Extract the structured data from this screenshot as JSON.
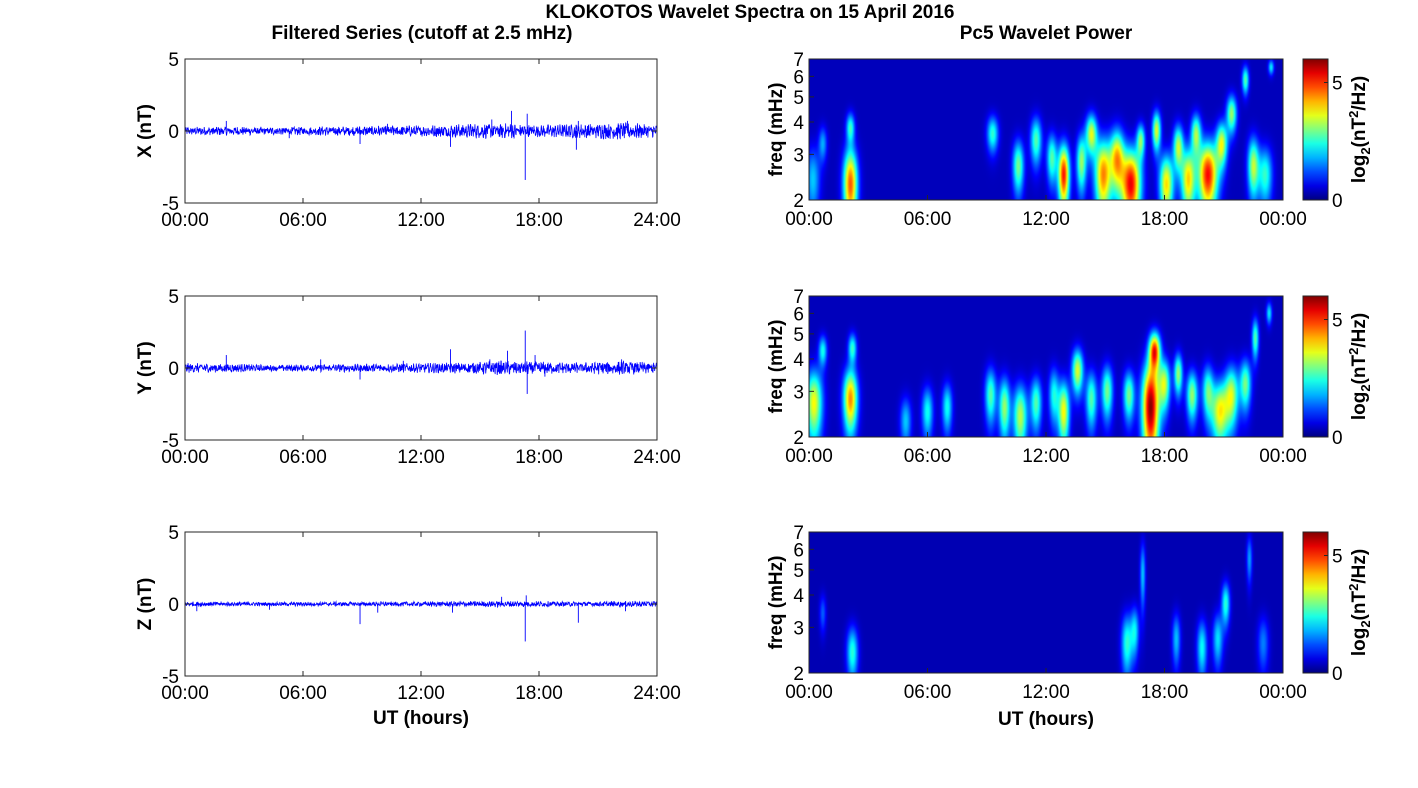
{
  "figure": {
    "title": "KLOKOTOS Wavelet Spectra on 15 April 2016",
    "left_title": "Filtered Series (cutoff at 2.5 mHz)",
    "right_title": "Pc5 Wavelet Power",
    "colors": {
      "trace": "#0000ff",
      "frame": "#262626"
    }
  },
  "chart_data": [
    {
      "type": "line",
      "panel": "X",
      "ylabel": "X (nT)",
      "xlabel": "",
      "ylim": [
        -5,
        5
      ],
      "yticks": [
        "5",
        "0",
        "-5"
      ],
      "xlim_hours": [
        0,
        24
      ],
      "xticks": [
        "00:00",
        "06:00",
        "12:00",
        "18:00",
        "24:00"
      ],
      "amp_segments": [
        [
          0,
          0.25
        ],
        [
          2,
          0.3
        ],
        [
          4,
          0.25
        ],
        [
          8,
          0.3
        ],
        [
          10,
          0.35
        ],
        [
          12,
          0.35
        ],
        [
          14,
          0.45
        ],
        [
          16,
          0.5
        ],
        [
          18,
          0.4
        ],
        [
          20,
          0.45
        ],
        [
          22,
          0.55
        ],
        [
          24,
          0.4
        ]
      ],
      "spikes": [
        [
          2.1,
          0.7
        ],
        [
          5.3,
          -0.5
        ],
        [
          8.9,
          -0.9
        ],
        [
          10.3,
          0.5
        ],
        [
          13.5,
          -1.1
        ],
        [
          15.6,
          0.8
        ],
        [
          16.6,
          1.4
        ],
        [
          17.3,
          -3.4
        ],
        [
          17.4,
          1.2
        ],
        [
          19.9,
          -1.3
        ],
        [
          20.0,
          0.7
        ],
        [
          22.5,
          0.7
        ]
      ]
    },
    {
      "type": "line",
      "panel": "Y",
      "ylabel": "Y (nT)",
      "xlabel": "",
      "ylim": [
        -5,
        5
      ],
      "yticks": [
        "5",
        "0",
        "-5"
      ],
      "xlim_hours": [
        0,
        24
      ],
      "xticks": [
        "00:00",
        "06:00",
        "12:00",
        "18:00",
        "24:00"
      ],
      "amp_segments": [
        [
          0,
          0.3
        ],
        [
          2,
          0.3
        ],
        [
          4,
          0.2
        ],
        [
          8,
          0.25
        ],
        [
          12,
          0.3
        ],
        [
          14,
          0.35
        ],
        [
          16,
          0.45
        ],
        [
          18,
          0.4
        ],
        [
          20,
          0.35
        ],
        [
          22,
          0.45
        ],
        [
          24,
          0.35
        ]
      ],
      "spikes": [
        [
          2.1,
          0.9
        ],
        [
          6.9,
          0.6
        ],
        [
          8.9,
          -0.8
        ],
        [
          11.1,
          0.5
        ],
        [
          13.5,
          1.3
        ],
        [
          15.5,
          0.6
        ],
        [
          16.4,
          1.2
        ],
        [
          17.3,
          2.6
        ],
        [
          17.4,
          -1.8
        ],
        [
          17.8,
          0.9
        ],
        [
          18.3,
          -0.6
        ],
        [
          22.2,
          0.6
        ]
      ]
    },
    {
      "type": "line",
      "panel": "Z",
      "ylabel": "Z (nT)",
      "xlabel": "UT (hours)",
      "ylim": [
        -5,
        5
      ],
      "yticks": [
        "5",
        "0",
        "-5"
      ],
      "xlim_hours": [
        0,
        24
      ],
      "xticks": [
        "00:00",
        "06:00",
        "12:00",
        "18:00",
        "24:00"
      ],
      "amp_segments": [
        [
          0,
          0.18
        ],
        [
          4,
          0.12
        ],
        [
          8,
          0.15
        ],
        [
          12,
          0.15
        ],
        [
          16,
          0.2
        ],
        [
          18,
          0.18
        ],
        [
          20,
          0.15
        ],
        [
          24,
          0.2
        ]
      ],
      "spikes": [
        [
          0.6,
          -0.5
        ],
        [
          4.3,
          -0.4
        ],
        [
          8.9,
          -1.4
        ],
        [
          9.8,
          -0.6
        ],
        [
          13.6,
          -0.6
        ],
        [
          16.1,
          0.5
        ],
        [
          17.3,
          -2.6
        ],
        [
          17.35,
          0.6
        ],
        [
          20.0,
          -1.3
        ],
        [
          22.4,
          -0.5
        ]
      ]
    },
    {
      "type": "heatmap",
      "panel": "X",
      "ylabel": "freq (mHz)",
      "xlabel": "",
      "y_scale": "log",
      "ylim_mHz": [
        2,
        7
      ],
      "yticks": [
        "2",
        "3",
        "4",
        "5",
        "6",
        "7"
      ],
      "xlim_hours": [
        0,
        24
      ],
      "xticks": [
        "00:00",
        "06:00",
        "12:00",
        "18:00",
        "00:00"
      ],
      "colorbar": {
        "label": "log2(nT^2/Hz)",
        "range": [
          0,
          6
        ],
        "ticks": [
          "0",
          "5"
        ]
      },
      "background": 0.35,
      "blobs": [
        [
          0.2,
          2.4,
          0.25,
          0.5,
          1.6
        ],
        [
          0.7,
          3.3,
          0.15,
          0.35,
          1.4
        ],
        [
          2.1,
          2.3,
          0.25,
          0.55,
          4.4
        ],
        [
          2.1,
          3.8,
          0.15,
          0.35,
          2.2
        ],
        [
          9.3,
          3.6,
          0.2,
          0.4,
          2.2
        ],
        [
          10.6,
          2.7,
          0.2,
          0.45,
          2.6
        ],
        [
          11.5,
          3.4,
          0.2,
          0.5,
          2.4
        ],
        [
          12.3,
          2.9,
          0.18,
          0.45,
          2.4
        ],
        [
          12.9,
          2.5,
          0.2,
          0.5,
          4.8
        ],
        [
          13.8,
          2.8,
          0.18,
          0.5,
          2.8
        ],
        [
          14.3,
          3.6,
          0.2,
          0.45,
          3.2
        ],
        [
          14.9,
          2.5,
          0.3,
          0.6,
          4.1
        ],
        [
          15.6,
          2.9,
          0.25,
          0.55,
          3.6
        ],
        [
          16.3,
          2.3,
          0.35,
          0.55,
          5.0
        ],
        [
          16.8,
          3.4,
          0.15,
          0.35,
          2.6
        ],
        [
          17.6,
          3.7,
          0.15,
          0.45,
          3.2
        ],
        [
          18.1,
          2.3,
          0.25,
          0.45,
          3.6
        ],
        [
          18.7,
          3.2,
          0.18,
          0.45,
          3.0
        ],
        [
          19.2,
          2.4,
          0.25,
          0.5,
          3.6
        ],
        [
          19.6,
          3.6,
          0.18,
          0.45,
          2.8
        ],
        [
          20.2,
          2.5,
          0.35,
          0.55,
          4.9
        ],
        [
          20.9,
          3.3,
          0.2,
          0.45,
          3.2
        ],
        [
          21.4,
          4.3,
          0.18,
          0.5,
          2.8
        ],
        [
          22.1,
          5.8,
          0.12,
          0.5,
          2.4
        ],
        [
          22.5,
          2.7,
          0.2,
          0.5,
          3.0
        ],
        [
          23.1,
          2.5,
          0.25,
          0.45,
          2.2
        ],
        [
          23.4,
          6.5,
          0.1,
          0.3,
          1.8
        ]
      ]
    },
    {
      "type": "heatmap",
      "panel": "Y",
      "ylabel": "freq (mHz)",
      "xlabel": "",
      "y_scale": "log",
      "ylim_mHz": [
        2,
        7
      ],
      "yticks": [
        "2",
        "3",
        "4",
        "5",
        "6",
        "7"
      ],
      "xlim_hours": [
        0,
        24
      ],
      "xticks": [
        "00:00",
        "06:00",
        "12:00",
        "18:00",
        "00:00"
      ],
      "colorbar": {
        "label": "log2(nT^2/Hz)",
        "range": [
          0,
          6
        ],
        "ticks": [
          "0",
          "5"
        ]
      },
      "background": 0.35,
      "blobs": [
        [
          0.25,
          2.7,
          0.3,
          0.6,
          3.4
        ],
        [
          0.7,
          4.3,
          0.15,
          0.4,
          2.0
        ],
        [
          2.1,
          2.8,
          0.25,
          0.55,
          4.1
        ],
        [
          2.2,
          4.4,
          0.15,
          0.4,
          2.2
        ],
        [
          4.9,
          2.3,
          0.2,
          0.35,
          1.6
        ],
        [
          6.0,
          2.5,
          0.2,
          0.4,
          2.0
        ],
        [
          7.0,
          2.6,
          0.18,
          0.4,
          2.0
        ],
        [
          9.2,
          2.9,
          0.2,
          0.5,
          2.4
        ],
        [
          9.9,
          2.6,
          0.2,
          0.5,
          2.8
        ],
        [
          10.7,
          2.4,
          0.25,
          0.5,
          3.0
        ],
        [
          11.5,
          2.7,
          0.2,
          0.45,
          2.4
        ],
        [
          12.4,
          2.9,
          0.18,
          0.5,
          2.0
        ],
        [
          12.9,
          2.5,
          0.2,
          0.5,
          3.4
        ],
        [
          13.6,
          3.6,
          0.2,
          0.5,
          3.2
        ],
        [
          14.3,
          2.8,
          0.2,
          0.5,
          2.4
        ],
        [
          15.1,
          3.0,
          0.2,
          0.5,
          2.6
        ],
        [
          16.2,
          2.9,
          0.2,
          0.45,
          2.6
        ],
        [
          17.3,
          2.6,
          0.3,
          0.8,
          5.6
        ],
        [
          17.5,
          4.3,
          0.2,
          0.5,
          4.6
        ],
        [
          18.0,
          3.2,
          0.2,
          0.5,
          3.0
        ],
        [
          18.7,
          3.5,
          0.15,
          0.45,
          2.8
        ],
        [
          19.4,
          2.9,
          0.2,
          0.45,
          2.8
        ],
        [
          20.2,
          3.0,
          0.2,
          0.5,
          2.4
        ],
        [
          20.8,
          2.5,
          0.3,
          0.5,
          3.4
        ],
        [
          21.4,
          2.9,
          0.25,
          0.55,
          3.0
        ],
        [
          22.1,
          3.2,
          0.2,
          0.5,
          2.6
        ],
        [
          22.6,
          4.8,
          0.12,
          0.6,
          2.4
        ],
        [
          23.3,
          6.0,
          0.1,
          0.4,
          1.8
        ]
      ]
    },
    {
      "type": "heatmap",
      "panel": "Z",
      "ylabel": "freq (mHz)",
      "xlabel": "UT (hours)",
      "y_scale": "log",
      "ylim_mHz": [
        2,
        7
      ],
      "yticks": [
        "2",
        "3",
        "4",
        "5",
        "6",
        "7"
      ],
      "xlim_hours": [
        0,
        24
      ],
      "xticks": [
        "00:00",
        "06:00",
        "12:00",
        "18:00",
        "00:00"
      ],
      "colorbar": {
        "label": "log2(nT^2/Hz)",
        "range": [
          0,
          6
        ],
        "ticks": [
          "0",
          "5"
        ]
      },
      "background": 0.3,
      "blobs": [
        [
          0.7,
          3.4,
          0.12,
          0.4,
          1.0
        ],
        [
          2.2,
          2.4,
          0.2,
          0.4,
          2.2
        ],
        [
          16.1,
          2.6,
          0.2,
          0.5,
          2.2
        ],
        [
          16.5,
          2.9,
          0.15,
          0.45,
          1.8
        ],
        [
          16.9,
          4.8,
          0.1,
          1.0,
          1.6
        ],
        [
          18.6,
          2.7,
          0.15,
          0.45,
          1.6
        ],
        [
          19.9,
          2.5,
          0.18,
          0.45,
          2.0
        ],
        [
          20.7,
          2.7,
          0.18,
          0.45,
          1.8
        ],
        [
          21.1,
          3.7,
          0.15,
          0.5,
          2.2
        ],
        [
          22.3,
          5.5,
          0.1,
          0.8,
          1.4
        ],
        [
          23.0,
          2.6,
          0.2,
          0.45,
          1.2
        ]
      ]
    }
  ]
}
